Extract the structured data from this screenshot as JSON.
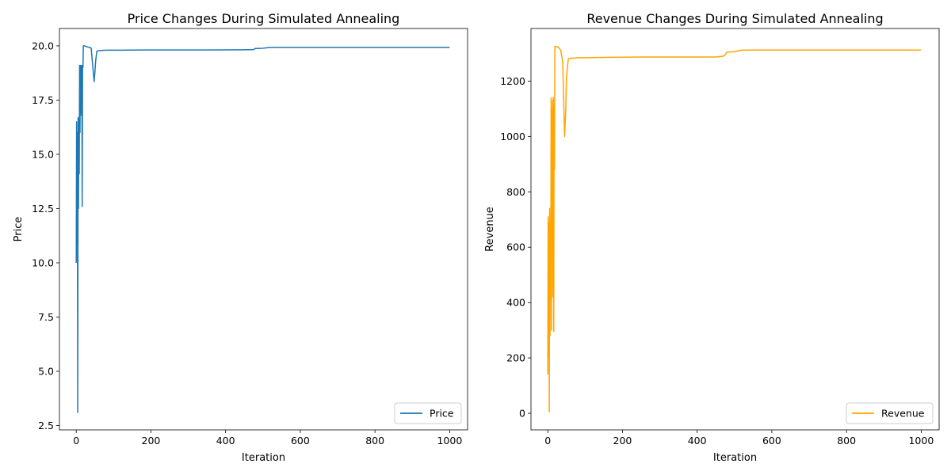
{
  "chart_data": [
    {
      "type": "line",
      "title": "Price Changes During Simulated Annealing",
      "xlabel": "Iteration",
      "ylabel": "Price",
      "xlim": [
        -45,
        1048
      ],
      "ylim": [
        2.3,
        20.8
      ],
      "xticks": [
        0,
        200,
        400,
        600,
        800,
        1000
      ],
      "yticks": [
        2.5,
        5.0,
        7.5,
        10.0,
        12.5,
        15.0,
        17.5,
        20.0
      ],
      "xtick_labels": [
        "0",
        "200",
        "400",
        "600",
        "800",
        "1000"
      ],
      "ytick_labels": [
        "2.5",
        "5.0",
        "7.5",
        "10.0",
        "12.5",
        "15.0",
        "17.5",
        "20.0"
      ],
      "grid": false,
      "legend_position": "lower right",
      "series": [
        {
          "name": "Price",
          "color": "#1f77b4",
          "x": [
            0,
            1,
            2,
            3,
            4,
            5,
            6,
            7,
            8,
            9,
            10,
            11,
            12,
            13,
            14,
            15,
            16,
            17,
            18,
            19,
            20,
            21,
            22,
            23,
            25,
            30,
            35,
            40,
            45,
            48,
            50,
            52,
            55,
            60,
            80,
            120,
            180,
            250,
            350,
            450,
            475,
            480,
            500,
            515,
            520,
            600,
            800,
            1000
          ],
          "y": [
            10.0,
            16.5,
            10.9,
            16.0,
            3.1,
            16.7,
            12.5,
            16.6,
            14.1,
            19.1,
            16.0,
            19.1,
            16.8,
            19.1,
            18.5,
            19.1,
            12.6,
            19.1,
            19.0,
            20.0,
            20.0,
            20.0,
            20.0,
            20.0,
            19.98,
            19.95,
            19.93,
            19.9,
            18.9,
            18.35,
            18.8,
            19.3,
            19.75,
            19.78,
            19.8,
            19.8,
            19.81,
            19.81,
            19.81,
            19.82,
            19.83,
            19.88,
            19.89,
            19.92,
            19.93,
            19.93,
            19.93,
            19.93
          ]
        }
      ]
    },
    {
      "type": "line",
      "title": "Revenue Changes During Simulated Annealing",
      "xlabel": "Iteration",
      "ylabel": "Revenue",
      "xlim": [
        -45,
        1048
      ],
      "ylim": [
        -60,
        1390
      ],
      "xticks": [
        0,
        200,
        400,
        600,
        800,
        1000
      ],
      "yticks": [
        0,
        200,
        400,
        600,
        800,
        1000,
        1200
      ],
      "xtick_labels": [
        "0",
        "200",
        "400",
        "600",
        "800",
        "1000"
      ],
      "ytick_labels": [
        "0",
        "200",
        "400",
        "600",
        "800",
        "1000",
        "1200"
      ],
      "grid": false,
      "legend_position": "lower right",
      "series": [
        {
          "name": "Revenue",
          "color": "#ffa500",
          "x": [
            0,
            1,
            2,
            3,
            4,
            5,
            6,
            7,
            8,
            9,
            10,
            11,
            12,
            13,
            14,
            15,
            16,
            17,
            18,
            19,
            20,
            22,
            25,
            30,
            35,
            40,
            45,
            48,
            50,
            52,
            55,
            60,
            80,
            120,
            180,
            250,
            350,
            450,
            470,
            475,
            480,
            500,
            515,
            520,
            600,
            800,
            1000
          ],
          "y": [
            140,
            710,
            200,
            690,
            5,
            740,
            280,
            600,
            420,
            1140,
            300,
            1100,
            620,
            1130,
            420,
            1140,
            295,
            1110,
            880,
            1325,
            1325,
            1325,
            1325,
            1320,
            1310,
            1270,
            1000,
            1090,
            1210,
            1240,
            1280,
            1282,
            1284,
            1285,
            1286,
            1287,
            1287,
            1287,
            1290,
            1295,
            1305,
            1306,
            1311,
            1312,
            1312,
            1312,
            1312
          ]
        }
      ]
    }
  ]
}
